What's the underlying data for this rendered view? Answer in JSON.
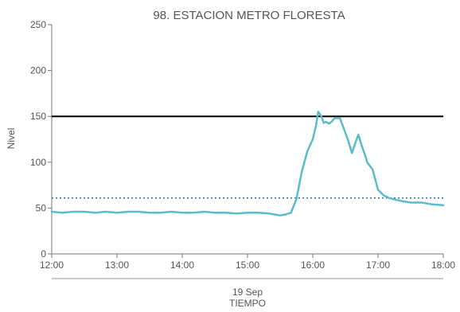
{
  "chart_data": {
    "type": "line",
    "title": "98. ESTACION METRO FLORESTA",
    "ylabel": "Nivel",
    "xlabel_date": "19 Sep",
    "xlabel": "TIEMPO",
    "ylim": [
      0,
      250
    ],
    "y_ticks": [
      0,
      50,
      100,
      150,
      200,
      250
    ],
    "xlim": [
      "12:00",
      "18:00"
    ],
    "x_ticks": [
      "12:00",
      "13:00",
      "14:00",
      "15:00",
      "16:00",
      "17:00",
      "18:00"
    ],
    "grid": false,
    "reference_lines": [
      {
        "style": "solid",
        "color": "#000000",
        "value": 150
      },
      {
        "style": "dotted",
        "color": "#3a6fb0",
        "value": 61
      }
    ],
    "series": [
      {
        "color": "#5bbcc8",
        "x": [
          "12:00",
          "12:10",
          "12:20",
          "12:30",
          "12:40",
          "12:50",
          "13:00",
          "13:10",
          "13:20",
          "13:30",
          "13:40",
          "13:50",
          "14:00",
          "14:10",
          "14:20",
          "14:30",
          "14:40",
          "14:50",
          "15:00",
          "15:10",
          "15:20",
          "15:30",
          "15:35",
          "15:40",
          "15:45",
          "15:50",
          "15:55",
          "16:00",
          "16:03",
          "16:05",
          "16:08",
          "16:10",
          "16:12",
          "16:15",
          "16:18",
          "16:20",
          "16:25",
          "16:30",
          "16:33",
          "16:36",
          "16:40",
          "16:42",
          "16:45",
          "16:48",
          "16:50",
          "16:55",
          "17:00",
          "17:05",
          "17:10",
          "17:20",
          "17:30",
          "17:40",
          "17:50",
          "18:00"
        ],
        "y": [
          46,
          45,
          46,
          46,
          45,
          46,
          45,
          46,
          46,
          45,
          45,
          46,
          45,
          45,
          46,
          45,
          45,
          44,
          45,
          45,
          44,
          42,
          43,
          45,
          60,
          90,
          112,
          125,
          140,
          155,
          150,
          143,
          144,
          142,
          145,
          148,
          148,
          132,
          122,
          110,
          124,
          130,
          118,
          108,
          100,
          92,
          70,
          64,
          61,
          58,
          56,
          56,
          54,
          53
        ]
      }
    ]
  }
}
